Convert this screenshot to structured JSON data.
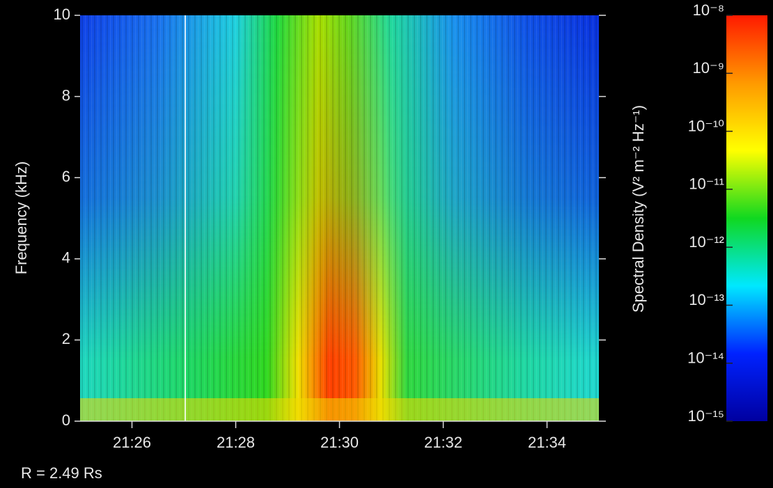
{
  "chart_data": {
    "type": "spectrogram",
    "x_label": null,
    "y_label": "Frequency (kHz)",
    "xlim": [
      "21:25",
      "21:35"
    ],
    "xticks": [
      "21:26",
      "21:28",
      "21:30",
      "21:32",
      "21:34"
    ],
    "ylim": [
      0,
      10
    ],
    "yticks": [
      0,
      2,
      4,
      6,
      8,
      10
    ],
    "colorbar": {
      "label": "Spectral Density (V² m⁻² Hz⁻¹)",
      "log": true,
      "lim": [
        1e-15,
        1e-08
      ],
      "ticks": [
        {
          "value": 1e-15,
          "label": "10⁻¹⁵"
        },
        {
          "value": 1e-14,
          "label": "10⁻¹⁴"
        },
        {
          "value": 1e-13,
          "label": "10⁻¹³"
        },
        {
          "value": 1e-12,
          "label": "10⁻¹²"
        },
        {
          "value": 1e-11,
          "label": "10⁻¹¹"
        },
        {
          "value": 1e-10,
          "label": "10⁻¹⁰"
        },
        {
          "value": 1e-09,
          "label": "10⁻⁹"
        },
        {
          "value": 1e-08,
          "label": "10⁻⁸"
        }
      ],
      "colors": [
        "#0000a0",
        "#0022ff",
        "#00e8ff",
        "#10d820",
        "#ffff00",
        "#ff9900",
        "#ff1a00"
      ]
    },
    "annotation": "R = 2.49 Rs"
  }
}
